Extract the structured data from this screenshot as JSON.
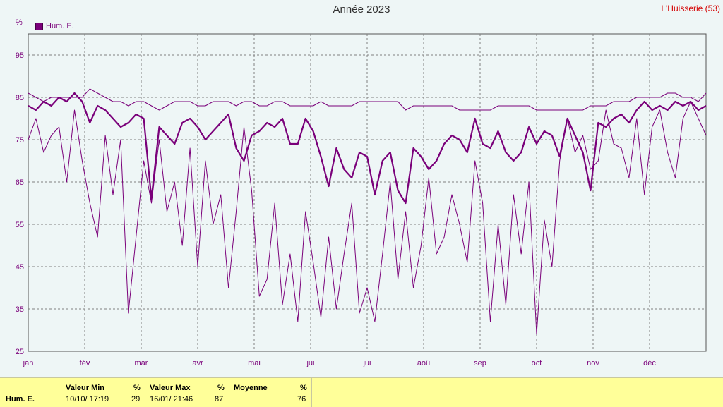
{
  "header": {
    "title": "Année 2023",
    "station": "L'Huisserie (53)"
  },
  "legend": {
    "unit": "%",
    "series_name": "Hum. E."
  },
  "chart_data": {
    "type": "line",
    "title": "Année 2023",
    "ylabel": "%",
    "ylim": [
      25,
      100
    ],
    "yticks": [
      25,
      35,
      45,
      55,
      65,
      75,
      85,
      95
    ],
    "xticks": [
      "jan",
      "fév",
      "mar",
      "avr",
      "mai",
      "jui",
      "jui",
      "aoû",
      "sep",
      "oct",
      "nov",
      "déc"
    ],
    "grid": true,
    "series": [
      {
        "name": "Hum. E.",
        "role": "max",
        "values": [
          86,
          85,
          84,
          85,
          85,
          85,
          85,
          85,
          87,
          86,
          85,
          84,
          84,
          83,
          84,
          84,
          83,
          82,
          83,
          84,
          84,
          84,
          83,
          83,
          84,
          84,
          84,
          83,
          84,
          84,
          83,
          83,
          84,
          84,
          83,
          83,
          83,
          83,
          84,
          83,
          83,
          83,
          83,
          84,
          84,
          84,
          84,
          84,
          84,
          82,
          83,
          83,
          83,
          83,
          83,
          83,
          82,
          82,
          82,
          82,
          82,
          83,
          83,
          83,
          83,
          83,
          82,
          82,
          82,
          82,
          82,
          82,
          82,
          83,
          83,
          83,
          84,
          84,
          84,
          85,
          85,
          85,
          85,
          86,
          86,
          85,
          85,
          84,
          86
        ]
      },
      {
        "name": "Hum. E.",
        "role": "avg",
        "values": [
          83,
          82,
          84,
          83,
          85,
          84,
          86,
          84,
          79,
          83,
          82,
          80,
          78,
          79,
          81,
          80,
          61,
          78,
          76,
          74,
          79,
          80,
          78,
          75,
          77,
          79,
          81,
          73,
          70,
          76,
          77,
          79,
          78,
          80,
          74,
          74,
          80,
          77,
          71,
          64,
          73,
          68,
          66,
          72,
          71,
          62,
          70,
          72,
          63,
          60,
          73,
          71,
          68,
          70,
          74,
          76,
          75,
          72,
          80,
          74,
          73,
          77,
          72,
          70,
          72,
          78,
          74,
          77,
          76,
          71,
          80,
          76,
          72,
          63,
          79,
          78,
          80,
          81,
          79,
          82,
          84,
          82,
          83,
          82,
          84,
          83,
          84,
          82,
          83
        ]
      },
      {
        "name": "Hum. E.",
        "role": "min",
        "values": [
          75,
          80,
          72,
          76,
          78,
          65,
          82,
          70,
          60,
          52,
          76,
          62,
          75,
          34,
          52,
          70,
          60,
          75,
          58,
          65,
          50,
          73,
          45,
          70,
          55,
          62,
          40,
          58,
          78,
          63,
          38,
          42,
          60,
          36,
          48,
          32,
          58,
          46,
          33,
          52,
          35,
          48,
          60,
          34,
          40,
          32,
          48,
          65,
          42,
          58,
          40,
          50,
          66,
          48,
          52,
          62,
          55,
          46,
          70,
          60,
          32,
          55,
          36,
          62,
          48,
          65,
          29,
          56,
          45,
          70,
          80,
          72,
          76,
          68,
          70,
          82,
          74,
          73,
          66,
          80,
          62,
          78,
          82,
          72,
          66,
          80,
          84,
          80,
          76
        ]
      }
    ]
  },
  "footer": {
    "series_label": "Hum. E.",
    "min": {
      "header": "Valeur Min",
      "unit": "%",
      "date": "10/10/ 17:19",
      "value": "29"
    },
    "max": {
      "header": "Valeur Max",
      "unit": "%",
      "date": "16/01/ 21:46",
      "value": "87"
    },
    "avg": {
      "header": "Moyenne",
      "unit": "%",
      "value": "76"
    }
  },
  "colors": {
    "series": "#7a007a",
    "grid": "#808080",
    "background": "#eef6f6",
    "footer": "#ffff99",
    "station": "#d40000"
  }
}
